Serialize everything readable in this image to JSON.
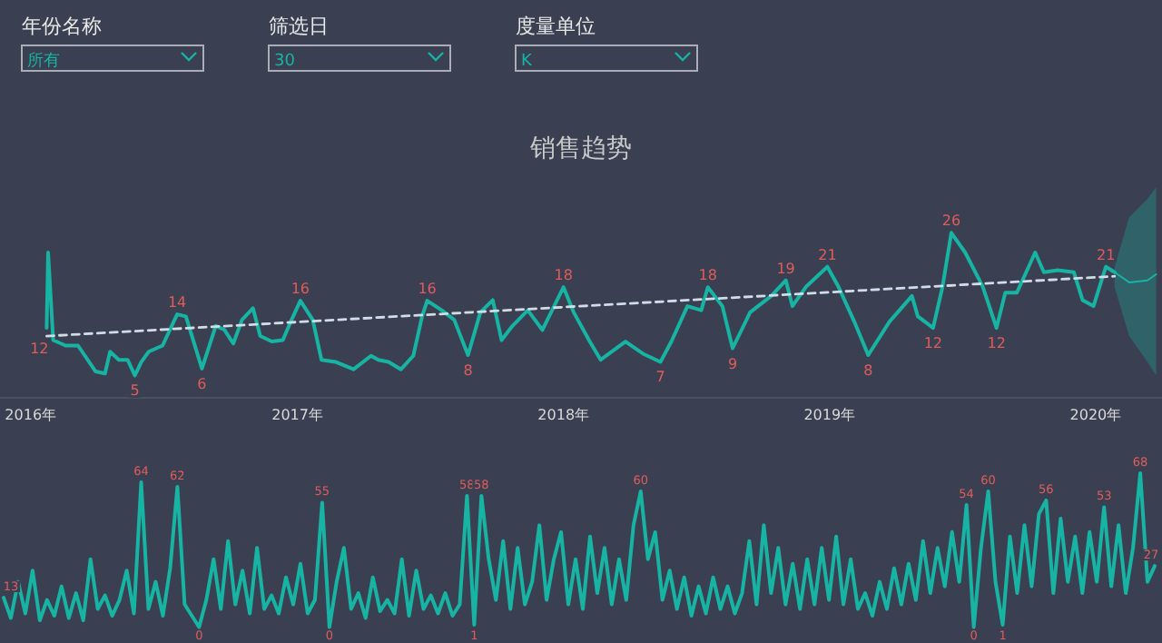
{
  "chart_data": [
    {
      "type": "other",
      "annotations": [
        "年份名称",
        "所有",
        "筛选日",
        "30",
        "度量单位",
        "K"
      ]
    },
    {
      "type": "line",
      "title": "销售趋势",
      "xlim": [
        "2015-11-20",
        "2020-04-01"
      ],
      "xticks": [
        {
          "value": "2016-01-01",
          "label": "2016年"
        },
        {
          "value": "2017-01-01",
          "label": "2017年"
        },
        {
          "value": "2018-01-01",
          "label": "2018年"
        },
        {
          "value": "2019-01-01",
          "label": "2019年"
        },
        {
          "value": "2020-01-01",
          "label": "2020年"
        }
      ],
      "series": [
        {
          "color": "#17b3a3",
          "x": [
            "2016-01-23",
            "2016-01-25",
            "2016-02-01",
            "2016-02-18",
            "2016-03-06",
            "2016-03-30",
            "2016-04-12",
            "2016-04-19",
            "2016-05-01",
            "2016-05-13",
            "2016-05-23",
            "2016-06-01",
            "2016-06-11",
            "2016-06-30",
            "2016-07-20",
            "2016-08-01",
            "2016-08-23",
            "2016-09-11",
            "2016-09-23",
            "2016-10-05",
            "2016-10-17",
            "2016-11-01",
            "2016-11-11",
            "2016-11-27",
            "2016-12-12",
            "2016-12-24",
            "2017-01-05",
            "2017-01-22",
            "2017-02-03",
            "2017-02-22",
            "2017-03-19",
            "2017-04-12",
            "2017-04-22",
            "2017-05-06",
            "2017-05-23",
            "2017-06-09",
            "2017-06-21",
            "2017-06-28",
            "2017-07-18",
            "2017-08-04",
            "2017-08-23",
            "2017-09-09",
            "2017-09-26",
            "2017-10-08",
            "2017-10-23",
            "2017-11-13",
            "2017-12-03",
            "2018-01-01",
            "2018-01-15",
            "2018-02-06",
            "2018-02-21",
            "2018-03-27",
            "2018-04-20",
            "2018-05-14",
            "2018-05-29",
            "2018-06-20",
            "2018-07-09",
            "2018-07-18",
            "2018-08-07",
            "2018-08-21",
            "2018-09-14",
            "2018-10-13",
            "2018-11-02",
            "2018-11-11",
            "2018-11-30",
            "2018-12-29",
            "2019-01-13",
            "2019-02-04",
            "2019-02-23",
            "2019-03-24",
            "2019-04-24",
            "2019-05-02",
            "2019-05-23",
            "2019-06-05",
            "2019-06-17",
            "2019-07-06",
            "2019-07-30",
            "2019-08-18",
            "2019-08-30",
            "2019-09-15",
            "2019-10-10",
            "2019-10-22",
            "2019-11-10",
            "2019-12-02",
            "2019-12-14",
            "2019-12-29",
            "2020-01-15",
            "2020-01-27"
          ],
          "values": [
            12,
            23.1,
            10.2,
            9.4,
            9.4,
            5.6,
            5.3,
            8.5,
            7.3,
            7.3,
            5,
            7,
            8.5,
            9.4,
            14,
            13.7,
            6,
            12.3,
            11.7,
            9.7,
            13.2,
            14.9,
            10.8,
            10,
            10.2,
            13.2,
            16,
            13.2,
            7.3,
            7,
            5.9,
            7.9,
            7.3,
            7,
            5.9,
            7.9,
            13.7,
            16,
            14.6,
            13.2,
            8,
            14.3,
            16.1,
            10.2,
            12.3,
            14.6,
            11.7,
            18,
            14.3,
            10,
            7.3,
            10,
            8.2,
            7,
            10,
            15.2,
            14.6,
            18,
            15.2,
            9,
            14.3,
            16.7,
            19,
            15.2,
            18.1,
            21,
            18.1,
            12.9,
            8,
            12.9,
            16.7,
            13.7,
            12,
            18.1,
            26,
            23.1,
            18.1,
            12,
            17.2,
            17.2,
            23.1,
            20.2,
            20.5,
            20.2,
            16.1,
            15.2,
            21,
            20.2
          ],
          "value_labels": [
            "12",
            null,
            null,
            null,
            null,
            null,
            null,
            null,
            null,
            null,
            "5",
            null,
            null,
            null,
            "14",
            null,
            "6",
            null,
            null,
            null,
            null,
            null,
            null,
            null,
            null,
            null,
            "16",
            null,
            null,
            null,
            null,
            null,
            null,
            null,
            null,
            null,
            null,
            "16",
            null,
            null,
            "8",
            null,
            null,
            null,
            null,
            null,
            null,
            "18",
            null,
            null,
            null,
            null,
            null,
            "7",
            null,
            null,
            null,
            "18",
            null,
            "9",
            null,
            null,
            "19",
            null,
            null,
            "21",
            null,
            null,
            "8",
            null,
            null,
            null,
            "12",
            null,
            "26",
            null,
            null,
            "12",
            null,
            null,
            null,
            null,
            null,
            null,
            null,
            null,
            "21",
            null
          ]
        },
        {
          "color": "#17b3a3",
          "x": [
            "2020-01-27",
            "2020-02-16",
            "2020-03-12",
            "2020-03-24"
          ],
          "values": [
            20.2,
            18.7,
            19,
            19.9
          ],
          "lower": [
            18,
            10.8,
            7,
            5
          ],
          "upper": [
            21,
            28.3,
            31,
            32.7
          ]
        },
        {
          "color": "#d0dde6",
          "line_style": "dashed",
          "x": [
            "2016-01-23",
            "2020-01-27"
          ],
          "values": [
            10.8,
            19.6
          ]
        }
      ]
    },
    {
      "type": "line",
      "color": "#17b3a3",
      "categories": [
        null,
        null,
        null,
        null,
        null,
        null,
        null,
        null,
        null,
        null,
        null,
        null,
        null,
        null,
        null,
        null,
        null,
        null,
        null,
        null,
        null,
        null,
        null,
        null,
        null,
        null,
        null,
        null,
        null,
        null,
        null,
        null,
        null,
        null,
        null,
        null,
        null,
        null,
        null,
        null,
        null,
        null,
        null,
        null,
        null,
        null,
        null,
        null,
        null,
        null,
        null,
        null,
        null,
        null,
        null,
        null,
        null,
        null,
        null,
        null,
        null,
        null,
        null,
        null,
        null,
        null,
        null,
        null,
        null,
        null,
        null,
        null,
        null,
        null,
        null,
        null,
        null,
        null,
        null,
        null,
        null,
        null,
        null,
        null,
        null,
        null,
        null,
        null,
        null,
        null,
        null,
        null,
        null,
        null,
        null,
        null,
        null,
        null,
        null,
        null,
        null,
        null,
        null,
        null,
        null,
        null,
        null,
        null,
        null,
        null,
        null,
        null,
        null,
        null,
        null,
        null,
        null,
        null,
        null,
        null,
        null,
        null,
        null,
        null,
        null,
        null,
        null,
        null,
        null,
        null,
        null,
        null,
        null,
        null,
        null,
        null,
        null,
        null,
        null,
        null,
        null,
        null,
        null,
        null,
        null,
        null,
        null,
        null,
        null,
        null,
        null,
        null,
        null,
        null,
        null,
        null,
        null,
        null,
        null,
        null
      ],
      "values": [
        13,
        4,
        20,
        6,
        25,
        3,
        12,
        5,
        18,
        4,
        15,
        3,
        30,
        8,
        14,
        5,
        12,
        25,
        6,
        64,
        8,
        20,
        5,
        26,
        62,
        10,
        5,
        0,
        12,
        30,
        8,
        38,
        10,
        25,
        6,
        35,
        8,
        14,
        6,
        22,
        10,
        28,
        6,
        12,
        55,
        0,
        20,
        35,
        8,
        15,
        4,
        22,
        7,
        12,
        6,
        30,
        5,
        25,
        8,
        14,
        6,
        15,
        5,
        10,
        58,
        1,
        58,
        30,
        12,
        38,
        8,
        35,
        10,
        20,
        45,
        12,
        30,
        42,
        10,
        30,
        8,
        40,
        15,
        35,
        10,
        30,
        12,
        45,
        60,
        30,
        42,
        12,
        25,
        8,
        22,
        5,
        18,
        6,
        22,
        8,
        18,
        6,
        15,
        38,
        10,
        45,
        15,
        35,
        10,
        28,
        8,
        30,
        10,
        35,
        12,
        40,
        10,
        30,
        8,
        15,
        5,
        20,
        8,
        26,
        10,
        28,
        12,
        38,
        15,
        35,
        18,
        42,
        20,
        54,
        0,
        35,
        60,
        20,
        1,
        40,
        15,
        45,
        18,
        50,
        56,
        15,
        48,
        20,
        40,
        15,
        42,
        20,
        53,
        18,
        45,
        15,
        35,
        68,
        20,
        27
      ],
      "value_labels": [
        "13",
        null,
        null,
        null,
        null,
        null,
        null,
        null,
        null,
        null,
        null,
        null,
        null,
        null,
        null,
        null,
        null,
        null,
        null,
        "64",
        null,
        null,
        null,
        null,
        "62",
        null,
        null,
        "0",
        null,
        null,
        null,
        null,
        null,
        null,
        null,
        null,
        null,
        null,
        null,
        null,
        null,
        null,
        null,
        null,
        "55",
        "0",
        null,
        null,
        null,
        null,
        null,
        null,
        null,
        null,
        null,
        null,
        null,
        null,
        null,
        null,
        null,
        null,
        null,
        null,
        "58",
        "1",
        "58",
        null,
        null,
        null,
        null,
        null,
        null,
        null,
        null,
        null,
        null,
        null,
        null,
        null,
        null,
        null,
        null,
        null,
        null,
        null,
        null,
        null,
        "60",
        null,
        null,
        null,
        null,
        null,
        null,
        null,
        null,
        null,
        null,
        null,
        null,
        null,
        null,
        null,
        null,
        null,
        null,
        null,
        null,
        null,
        null,
        null,
        null,
        null,
        null,
        null,
        null,
        null,
        null,
        null,
        null,
        null,
        null,
        null,
        null,
        null,
        null,
        null,
        null,
        null,
        null,
        null,
        null,
        "54",
        "0",
        null,
        "60",
        null,
        "1",
        null,
        null,
        null,
        null,
        null,
        "56",
        null,
        null,
        null,
        null,
        null,
        null,
        null,
        "53",
        null,
        null,
        null,
        null,
        "68",
        null,
        "27"
      ]
    }
  ]
}
